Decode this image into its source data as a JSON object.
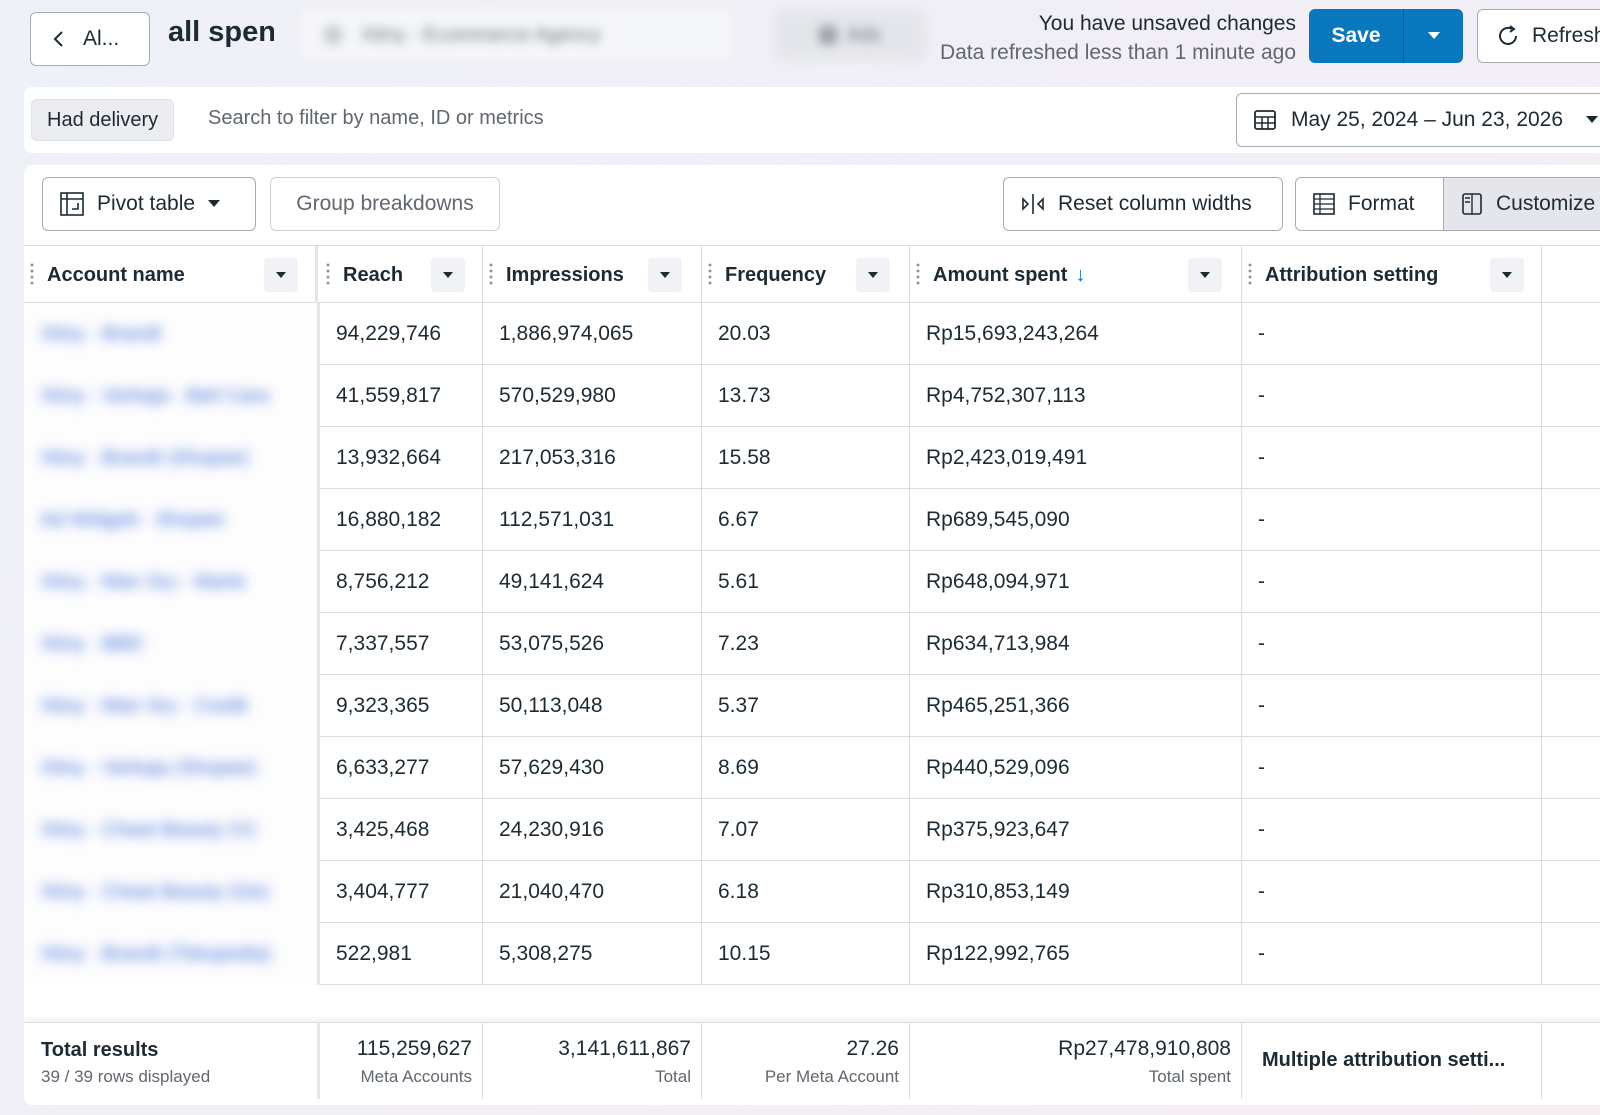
{
  "header": {
    "back_label": "Al...",
    "report_title": "all spen",
    "blurred_field": "Xtiny - Ecommerce Agency",
    "blurred_chip": "Ads",
    "unsaved_message": "You have unsaved changes",
    "refresh_status": "Data refreshed less than 1 minute ago",
    "save_label": "Save",
    "refresh_label": "Refresh"
  },
  "filter_bar": {
    "chip_label": "Had delivery",
    "search_placeholder": "Search to filter by name, ID or metrics",
    "date_range": "May 25, 2024 – Jun 23, 2026"
  },
  "toolbar": {
    "pivot_label": "Pivot table",
    "group_label": "Group breakdowns",
    "reset_label": "Reset column widths",
    "format_label": "Format",
    "customize_label": "Customize"
  },
  "columns": {
    "account": "Account name",
    "reach": "Reach",
    "impressions": "Impressions",
    "frequency": "Frequency",
    "amount": "Amount spent",
    "attribution": "Attribution setting"
  },
  "rows": [
    {
      "account": "Xtiny - Brandt",
      "reach": "94,229,746",
      "impressions": "1,886,974,065",
      "frequency": "20.03",
      "amount": "Rp15,693,243,264",
      "attribution": "-"
    },
    {
      "account": "Xtiny - Verkaja - Beli Cara",
      "reach": "41,559,817",
      "impressions": "570,529,980",
      "frequency": "13.73",
      "amount": "Rp4,752,307,113",
      "attribution": "-"
    },
    {
      "account": "Xtiny - Brandt (Shopee)",
      "reach": "13,932,664",
      "impressions": "217,053,316",
      "frequency": "15.58",
      "amount": "Rp2,423,019,491",
      "attribution": "-"
    },
    {
      "account": "Ad Widgett - Shopee",
      "reach": "16,880,182",
      "impressions": "112,571,031",
      "frequency": "6.67",
      "amount": "Rp689,545,090",
      "attribution": "-"
    },
    {
      "account": "Xtiny - Man Sry - Marte",
      "reach": "8,756,212",
      "impressions": "49,141,624",
      "frequency": "5.61",
      "amount": "Rp648,094,971",
      "attribution": "-"
    },
    {
      "account": "Xtiny - BBD",
      "reach": "7,337,557",
      "impressions": "53,075,526",
      "frequency": "7.23",
      "amount": "Rp634,713,984",
      "attribution": "-"
    },
    {
      "account": "Xtiny - Man Sry - Credit",
      "reach": "9,323,365",
      "impressions": "50,113,048",
      "frequency": "5.37",
      "amount": "Rp465,251,366",
      "attribution": "-"
    },
    {
      "account": "Xtiny - Verkaja (Shopee)",
      "reach": "6,633,277",
      "impressions": "57,629,430",
      "frequency": "8.69",
      "amount": "Rp440,529,096",
      "attribution": "-"
    },
    {
      "account": "Xtiny - Cheat Beauty (V)",
      "reach": "3,425,468",
      "impressions": "24,230,916",
      "frequency": "7.07",
      "amount": "Rp375,923,647",
      "attribution": "-"
    },
    {
      "account": "Xtiny - Cheat Beauty (Ge)",
      "reach": "3,404,777",
      "impressions": "21,040,470",
      "frequency": "6.18",
      "amount": "Rp310,853,149",
      "attribution": "-"
    },
    {
      "account": "Xtiny - Brandt (Tokopedia)",
      "reach": "522,981",
      "impressions": "5,308,275",
      "frequency": "10.15",
      "amount": "Rp122,992,765",
      "attribution": "-"
    }
  ],
  "totals": {
    "title": "Total results",
    "rows_displayed": "39 / 39 rows displayed",
    "reach": "115,259,627",
    "reach_label": "Meta Accounts",
    "impressions": "3,141,611,867",
    "impressions_label": "Total",
    "frequency": "27.26",
    "frequency_label": "Per Meta Account",
    "amount": "Rp27,478,910,808",
    "amount_label": "Total spent",
    "attribution": "Multiple attribution setti..."
  },
  "colors": {
    "accent": "#0a78be",
    "border": "#dadde1",
    "text": "#1c2b33",
    "muted": "#606770"
  }
}
